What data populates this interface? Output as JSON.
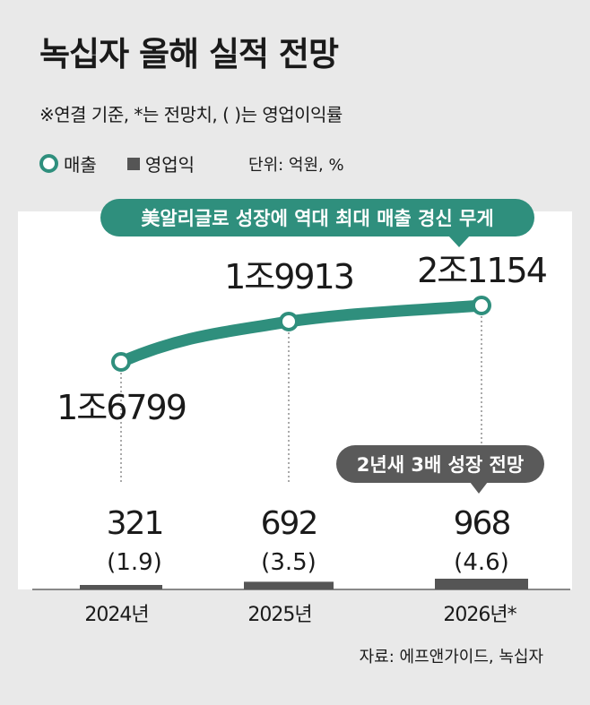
{
  "header": {
    "title": "녹십자 올해 실적 전망",
    "subtitle": "※연결 기준, *는 전망치, ( )는 영업이익률"
  },
  "legend": {
    "sales_label": "매출",
    "op_label": "영업익",
    "unit": "단위: 억원, %"
  },
  "colors": {
    "sales": "#2f8f7d",
    "op_profit": "#555555",
    "background": "#e9e9e9",
    "panel": "#ffffff",
    "callout_dark": "#5a5a5a"
  },
  "chart_data": {
    "type": "line",
    "categories": [
      "2024년",
      "2025년",
      "2026년*"
    ],
    "series": [
      {
        "name": "매출",
        "values": [
          16799,
          19913,
          21154
        ],
        "labels": [
          "1조6799",
          "1조9913",
          "2조1154"
        ]
      },
      {
        "name": "영업익",
        "type": "bar",
        "values": [
          321,
          692,
          968
        ],
        "labels": [
          "321",
          "692",
          "968"
        ],
        "margins": [
          "(1.9)",
          "(3.5)",
          "(4.6)"
        ]
      }
    ],
    "annotations": [
      "美알리글로 성장에 역대 최대 매출 경신 무게",
      "2년새 3배 성장 전망"
    ]
  },
  "source": "자료: 에프앤가이드, 녹십자"
}
